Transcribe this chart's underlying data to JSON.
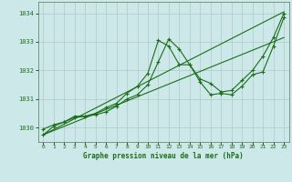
{
  "title": "Graphe pression niveau de la mer (hPa)",
  "bg_color": "#cce8e8",
  "grid_color": "#b0c8c8",
  "line_color": "#1a6e1a",
  "xlim": [
    -0.5,
    23.5
  ],
  "ylim": [
    1029.5,
    1034.4
  ],
  "xticks": [
    0,
    1,
    2,
    3,
    4,
    5,
    6,
    7,
    8,
    9,
    10,
    11,
    12,
    13,
    14,
    15,
    16,
    17,
    18,
    19,
    20,
    21,
    22,
    23
  ],
  "yticks": [
    1030,
    1031,
    1032,
    1033,
    1034
  ],
  "series1": {
    "x": [
      0,
      1,
      2,
      3,
      4,
      5,
      6,
      7,
      8,
      9,
      10,
      11,
      12,
      13,
      14,
      15,
      16,
      17,
      18,
      19,
      20,
      21,
      22,
      23
    ],
    "y": [
      1029.95,
      1030.1,
      1030.2,
      1030.4,
      1030.4,
      1030.5,
      1030.7,
      1030.85,
      1031.2,
      1031.45,
      1031.9,
      1033.05,
      1032.85,
      1032.2,
      1032.2,
      1031.7,
      1031.55,
      1031.25,
      1031.3,
      1031.65,
      1032.0,
      1032.5,
      1033.15,
      1034.0
    ]
  },
  "series2": {
    "x": [
      0,
      1,
      2,
      3,
      4,
      5,
      6,
      7,
      8,
      9,
      10,
      11,
      12,
      13,
      14,
      15,
      16,
      17,
      18,
      19,
      20,
      21,
      22,
      23
    ],
    "y": [
      1029.75,
      1030.05,
      1030.2,
      1030.35,
      1030.4,
      1030.45,
      1030.55,
      1030.75,
      1031.0,
      1031.15,
      1031.5,
      1032.3,
      1033.1,
      1032.75,
      1032.2,
      1031.6,
      1031.15,
      1031.2,
      1031.15,
      1031.45,
      1031.85,
      1031.95,
      1032.85,
      1033.85
    ]
  },
  "line1": {
    "x": [
      0,
      23
    ],
    "y": [
      1029.75,
      1034.05
    ]
  },
  "line2": {
    "x": [
      0,
      23
    ],
    "y": [
      1029.75,
      1033.15
    ]
  }
}
